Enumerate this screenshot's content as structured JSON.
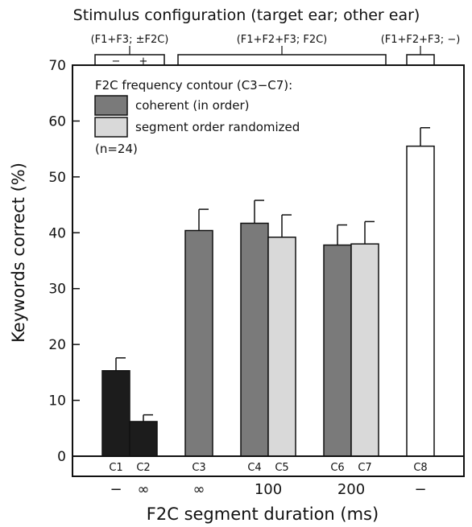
{
  "chart_data": {
    "type": "bar",
    "title": "Stimulus configuration (target ear; other ear)",
    "xlabel": "F2C segment duration (ms)",
    "ylabel": "Keywords correct (%)",
    "ylim": [
      0,
      70
    ],
    "yticks": [
      "0",
      "10",
      "20",
      "30",
      "40",
      "50",
      "60",
      "70"
    ],
    "grid": false,
    "legend_placement": "top-left",
    "legend_title": "F2C frequency contour (C3−C7):",
    "legend_note": "(n=24)",
    "colors": {
      "black": "#1c1c1c",
      "coherent": "#7a7a7a",
      "randomized": "#d9d9d9",
      "white": "#ffffff"
    },
    "series": [
      {
        "name": "coherent (in order)",
        "style": "coherent"
      },
      {
        "name": "segment order randomized",
        "style": "randomized"
      }
    ],
    "conditions": [
      {
        "label": "C1",
        "value": 15.3,
        "error": 2.3,
        "style": "black"
      },
      {
        "label": "C2",
        "value": 6.2,
        "error": 1.2,
        "style": "black"
      },
      {
        "label": "C3",
        "value": 40.4,
        "error": 3.8,
        "style": "coherent"
      },
      {
        "label": "C4",
        "value": 41.7,
        "error": 4.1,
        "style": "coherent"
      },
      {
        "label": "C5",
        "value": 39.2,
        "error": 4.0,
        "style": "randomized"
      },
      {
        "label": "C6",
        "value": 37.8,
        "error": 3.6,
        "style": "coherent"
      },
      {
        "label": "C7",
        "value": 38.0,
        "error": 4.0,
        "style": "randomized"
      },
      {
        "label": "C8",
        "value": 55.5,
        "error": 3.3,
        "style": "white"
      }
    ],
    "duration_labels": [
      {
        "text": "−",
        "under": [
          "C1"
        ]
      },
      {
        "text": "∞",
        "under": [
          "C2"
        ]
      },
      {
        "text": "∞",
        "under": [
          "C3"
        ]
      },
      {
        "text": "100",
        "under": [
          "C4",
          "C5"
        ]
      },
      {
        "text": "200",
        "under": [
          "C6",
          "C7"
        ]
      },
      {
        "text": "−",
        "under": [
          "C8"
        ]
      }
    ],
    "configuration_groups": [
      {
        "label": "(F1+F3; ±F2C)",
        "from": "C1",
        "to": "C2",
        "marks": [
          "−",
          "+"
        ]
      },
      {
        "label": "(F1+F2+F3; F2C)",
        "from": "C3",
        "to": "C7",
        "marks": []
      },
      {
        "label": "(F1+F2+F3; −)",
        "from": "C8",
        "to": "C8",
        "marks": []
      }
    ]
  }
}
